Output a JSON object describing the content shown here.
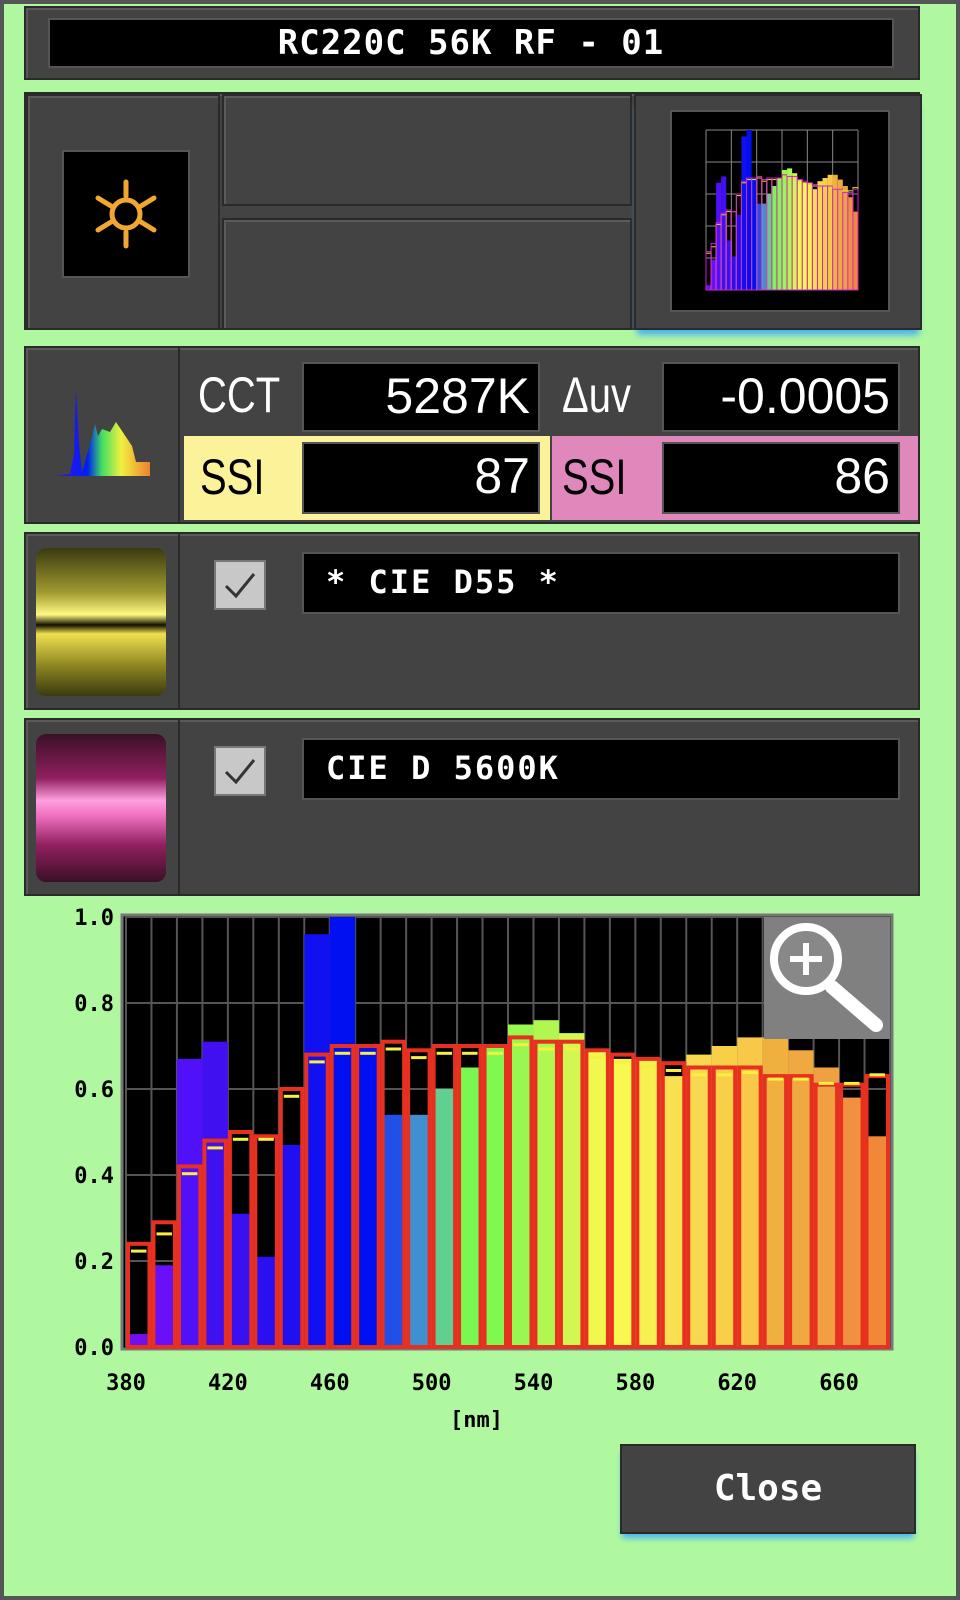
{
  "header": {
    "title": "RC220C 56K RF - 01"
  },
  "mode": {
    "icon": "sun-icon",
    "accent": "#f0a830"
  },
  "readings": {
    "cct_label": "CCT",
    "cct_value": "5287K",
    "duv_label": "Δuv",
    "duv_value": "-0.0005",
    "ssi_ref1_label": "SSI",
    "ssi_ref1_value": "87",
    "ssi_ref1_color": "#fcf29a",
    "ssi_ref2_label": "SSI",
    "ssi_ref2_value": "86",
    "ssi_ref2_color": "#e088bc"
  },
  "references": [
    {
      "name": "* CIE D55 *",
      "checked": true,
      "color": "#f0e030"
    },
    {
      "name": "CIE D 5600K",
      "checked": true,
      "color": "#e040a0"
    }
  ],
  "close_label": "Close",
  "chart_data": {
    "type": "bar",
    "xlabel": "[nm]",
    "ylim": [
      0,
      1.0
    ],
    "yticks": [
      "0.0",
      "0.2",
      "0.4",
      "0.6",
      "0.8",
      "1.0"
    ],
    "xticks": [
      "380",
      "420",
      "460",
      "500",
      "540",
      "580",
      "620",
      "660"
    ],
    "grid": true,
    "categories": [
      380,
      390,
      400,
      410,
      420,
      430,
      440,
      450,
      460,
      470,
      480,
      490,
      500,
      510,
      520,
      530,
      540,
      550,
      560,
      570,
      580,
      590,
      600,
      610,
      620,
      630,
      640,
      650,
      660,
      670
    ],
    "series": [
      {
        "values": [
          0.03,
          0.19,
          0.67,
          0.71,
          0.31,
          0.21,
          0.47,
          0.96,
          1.0,
          0.7,
          0.54,
          0.54,
          0.6,
          0.65,
          0.7,
          0.75,
          0.76,
          0.73,
          0.69,
          0.67,
          0.67,
          0.63,
          0.68,
          0.7,
          0.72,
          0.72,
          0.69,
          0.65,
          0.58,
          0.49
        ],
        "colors": [
          "#7010f0",
          "#6a10f8",
          "#5010f8",
          "#4010f0",
          "#3a10f0",
          "#2a10f0",
          "#2010f0",
          "#1010f0",
          "#0010f0",
          "#0010f0",
          "#2050e8",
          "#4090d0",
          "#60d090",
          "#78f850",
          "#80f850",
          "#98f850",
          "#b0f850",
          "#d0f850",
          "#f0f850",
          "#f8f850",
          "#f8f050",
          "#f8e050",
          "#f8d850",
          "#f8d048",
          "#f8c848",
          "#f0b040",
          "#f0a840",
          "#f0a040",
          "#f09040",
          "#f08838"
        ]
      },
      {
        "name": "* CIE D55 *",
        "color": "#f8f040",
        "values": [
          0.23,
          0.27,
          0.41,
          0.47,
          0.49,
          0.49,
          0.59,
          0.67,
          0.69,
          0.69,
          0.7,
          0.68,
          0.69,
          0.69,
          0.69,
          0.71,
          0.7,
          0.7,
          0.68,
          0.67,
          0.66,
          0.65,
          0.64,
          0.64,
          0.645,
          0.63,
          0.63,
          0.62,
          0.62,
          0.64
        ]
      },
      {
        "name": "CIE D 5600K",
        "color": "#e83020",
        "values": [
          0.24,
          0.29,
          0.42,
          0.48,
          0.5,
          0.49,
          0.6,
          0.68,
          0.7,
          0.7,
          0.71,
          0.69,
          0.7,
          0.7,
          0.7,
          0.72,
          0.71,
          0.71,
          0.69,
          0.68,
          0.67,
          0.66,
          0.65,
          0.65,
          0.65,
          0.63,
          0.63,
          0.61,
          0.61,
          0.63
        ]
      }
    ]
  }
}
